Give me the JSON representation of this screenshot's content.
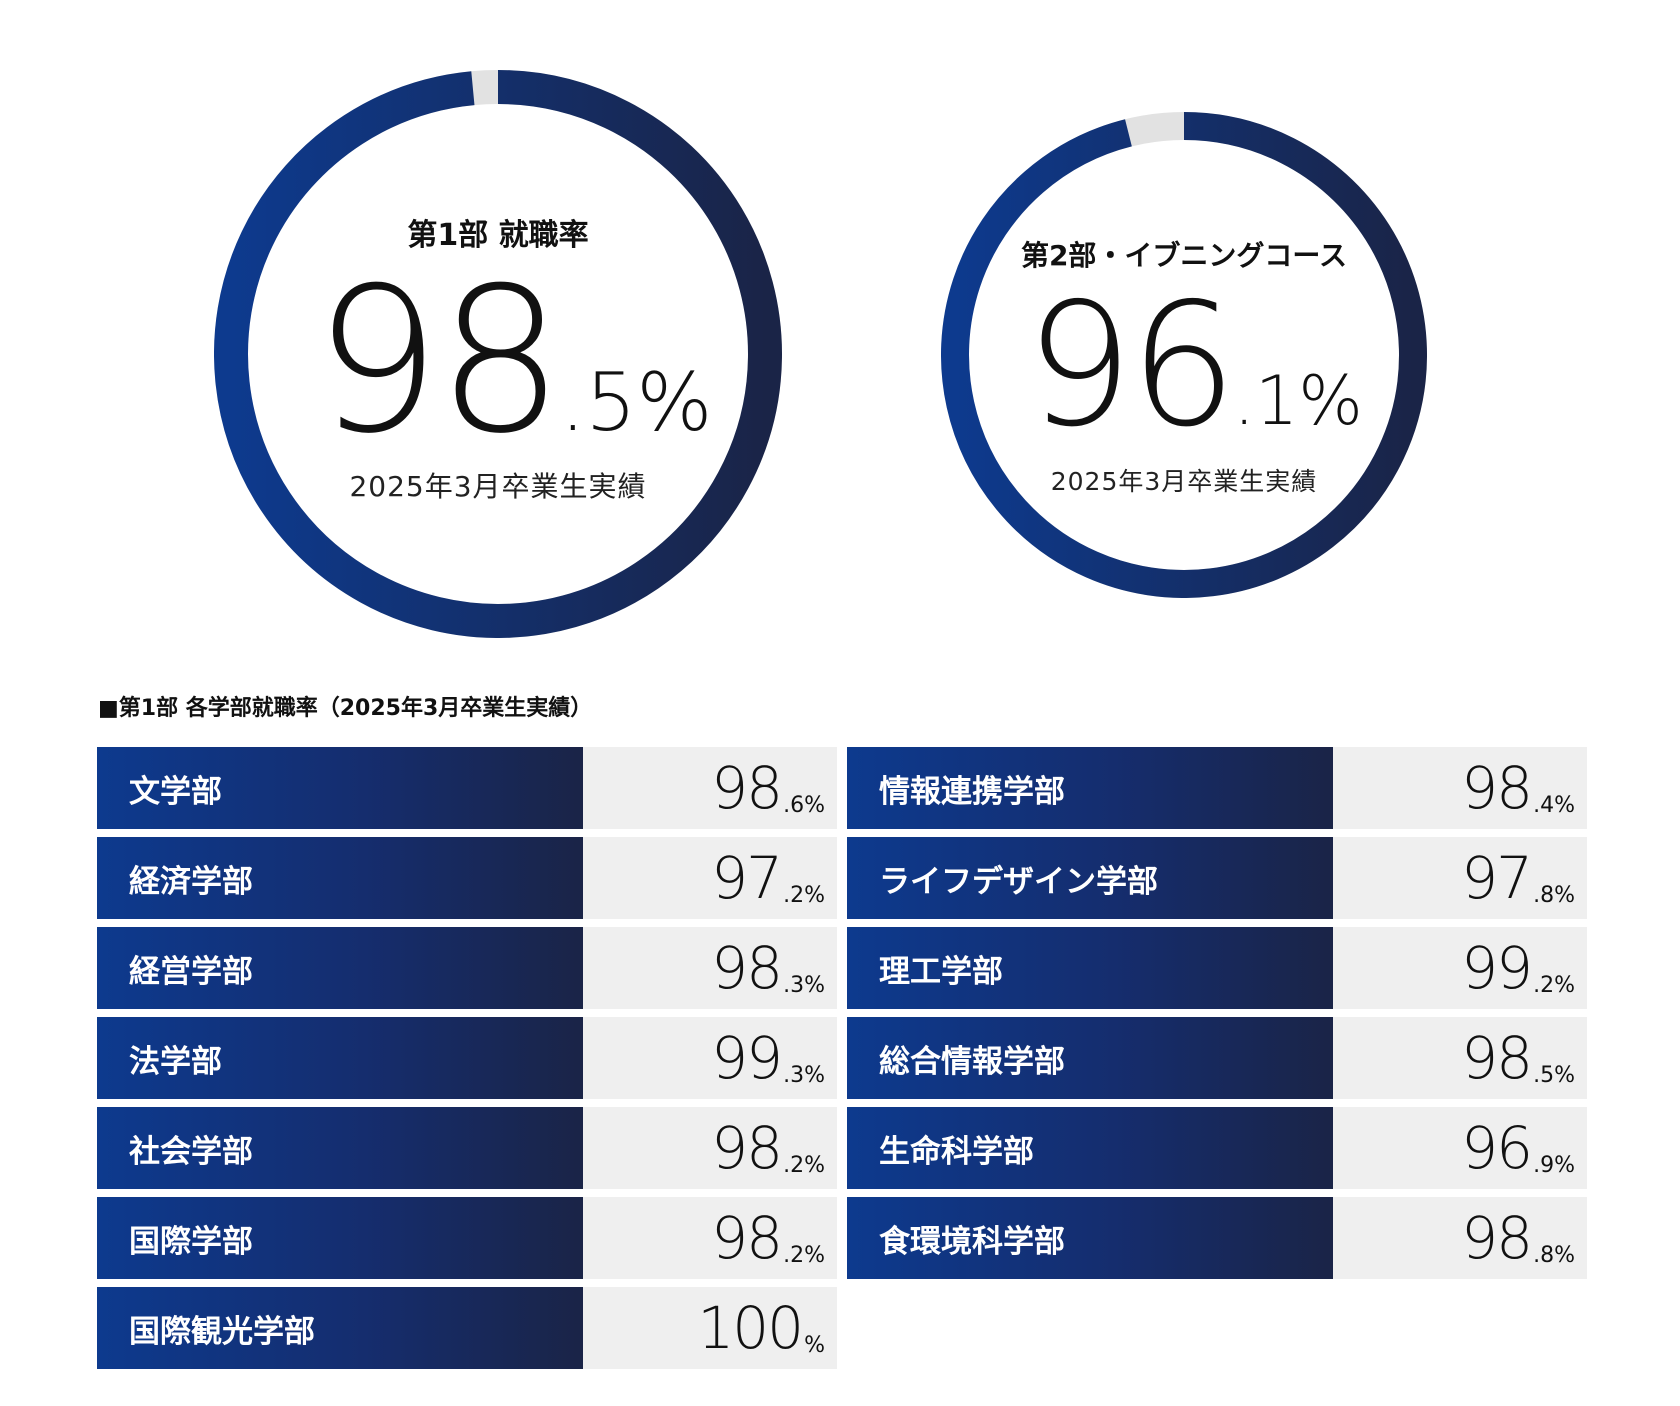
{
  "chart_data": [
    {
      "type": "pie",
      "title": "第1部 就職率",
      "value_int": "98",
      "value_dec": ".5%",
      "value": 98.5,
      "note": "2025年3月卒業生実績",
      "colors": {
        "filled_start": "#0d3a8e",
        "filled_end": "#1a2447",
        "remaining": "#e2e2e2"
      }
    },
    {
      "type": "pie",
      "title": "第2部・イブニングコース",
      "value_int": "96",
      "value_dec": ".1%",
      "value": 96.1,
      "note": "2025年3月卒業生実績",
      "colors": {
        "filled_start": "#0d3a8e",
        "filled_end": "#1a2447",
        "remaining": "#e2e2e2"
      }
    },
    {
      "type": "table",
      "title": "■第1部 各学部就職率（2025年3月卒業生実績）",
      "left": [
        {
          "name": "文学部",
          "int": "98",
          "dec": ".6%",
          "value": 98.6
        },
        {
          "name": "経済学部",
          "int": "97",
          "dec": ".2%",
          "value": 97.2
        },
        {
          "name": "経営学部",
          "int": "98",
          "dec": ".3%",
          "value": 98.3
        },
        {
          "name": "法学部",
          "int": "99",
          "dec": ".3%",
          "value": 99.3
        },
        {
          "name": "社会学部",
          "int": "98",
          "dec": ".2%",
          "value": 98.2
        },
        {
          "name": "国際学部",
          "int": "98",
          "dec": ".2%",
          "value": 98.2
        },
        {
          "name": "国際観光学部",
          "int": "100",
          "dec": "%",
          "value": 100
        }
      ],
      "right": [
        {
          "name": "情報連携学部",
          "int": "98",
          "dec": ".4%",
          "value": 98.4
        },
        {
          "name": "ライフデザイン学部",
          "int": "97",
          "dec": ".8%",
          "value": 97.8
        },
        {
          "name": "理工学部",
          "int": "99",
          "dec": ".2%",
          "value": 99.2
        },
        {
          "name": "総合情報学部",
          "int": "98",
          "dec": ".5%",
          "value": 98.5
        },
        {
          "name": "生命科学部",
          "int": "96",
          "dec": ".9%",
          "value": 96.9
        },
        {
          "name": "食環境科学部",
          "int": "98",
          "dec": ".8%",
          "value": 98.8
        }
      ]
    }
  ]
}
